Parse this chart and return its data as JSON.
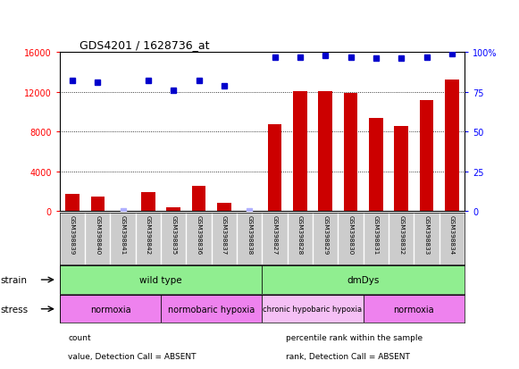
{
  "title": "GDS4201 / 1628736_at",
  "samples": [
    "GSM398839",
    "GSM398840",
    "GSM398841",
    "GSM398842",
    "GSM398835",
    "GSM398836",
    "GSM398837",
    "GSM398838",
    "GSM398827",
    "GSM398828",
    "GSM398829",
    "GSM398830",
    "GSM398831",
    "GSM398832",
    "GSM398833",
    "GSM398834"
  ],
  "counts": [
    1700,
    1500,
    0,
    1900,
    400,
    2500,
    850,
    0,
    8700,
    12100,
    12100,
    11900,
    9400,
    8600,
    11200,
    13200
  ],
  "absent_count": [
    false,
    false,
    true,
    false,
    false,
    false,
    false,
    true,
    false,
    false,
    false,
    false,
    false,
    false,
    false,
    false
  ],
  "percentile_ranks_pct": [
    82,
    81,
    0,
    82,
    76,
    82,
    79,
    0,
    97,
    97,
    98,
    97,
    96,
    96,
    97,
    99
  ],
  "absent_rank": [
    false,
    false,
    true,
    false,
    false,
    false,
    false,
    true,
    false,
    false,
    false,
    false,
    false,
    false,
    false,
    false
  ],
  "ylim_left": [
    0,
    16000
  ],
  "ylim_right": [
    0,
    100
  ],
  "yticks_left": [
    0,
    4000,
    8000,
    12000,
    16000
  ],
  "yticks_right": [
    0,
    25,
    50,
    75,
    100
  ],
  "bar_color": "#CC0000",
  "absent_bar_color": "#FFB0B0",
  "dot_color": "#0000CC",
  "absent_dot_color": "#B0B0FF",
  "strain_groups": [
    {
      "label": "wild type",
      "start": 0,
      "end": 8,
      "color": "#90EE90"
    },
    {
      "label": "dmDys",
      "start": 8,
      "end": 16,
      "color": "#90EE90"
    }
  ],
  "stress_groups": [
    {
      "label": "normoxia",
      "start": 0,
      "end": 4,
      "color": "#EE82EE"
    },
    {
      "label": "normobaric hypoxia",
      "start": 4,
      "end": 8,
      "color": "#EE82EE"
    },
    {
      "label": "chronic hypobaric hypoxia",
      "start": 8,
      "end": 12,
      "color": "#F5C0F5"
    },
    {
      "label": "normoxia",
      "start": 12,
      "end": 16,
      "color": "#EE82EE"
    }
  ],
  "legend_items": [
    {
      "label": "count",
      "color": "#CC0000"
    },
    {
      "label": "percentile rank within the sample",
      "color": "#0000CC"
    },
    {
      "label": "value, Detection Call = ABSENT",
      "color": "#FFB0B0"
    },
    {
      "label": "rank, Detection Call = ABSENT",
      "color": "#B0B0FF"
    }
  ],
  "fig_bg": "#FFFFFF"
}
